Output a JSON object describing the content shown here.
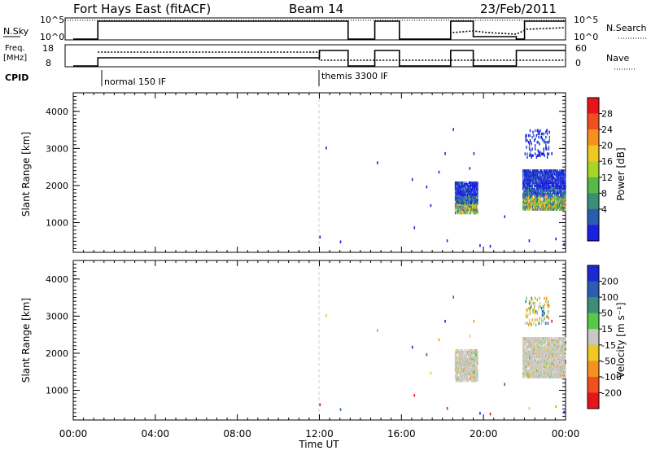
{
  "header": {
    "title": "Fort Hays East (fitACF)",
    "beam": "Beam 14",
    "date": "23/Feb/2011"
  },
  "strips": {
    "nsky_label": "N.Sky",
    "nsky_ticks": [
      "10^5",
      "10^0"
    ],
    "nsearch_label": "N.Search",
    "nsearch_ticks": [
      "10^5",
      "10^0"
    ],
    "freq_label_1": "Freq.",
    "freq_label_2": "[MHz]",
    "freq_ticks": [
      "18",
      "8"
    ],
    "nave_label": "Nave",
    "nave_ticks": [
      "60",
      "0"
    ],
    "cpid_label": "CPID",
    "cpid_segments": [
      {
        "start_hour": 1.2,
        "label": "normal 150 IF"
      },
      {
        "start_hour": 12.0,
        "label": "themis 3300 IF"
      }
    ]
  },
  "chart_data": [
    {
      "type": "scatter",
      "name": "power",
      "ylabel": "Slant Range [km]",
      "xlabel": "Time UT",
      "xlim": [
        0,
        24
      ],
      "ylim": [
        200,
        4500
      ],
      "yticks": [
        "4000",
        "3000",
        "2000",
        "1000"
      ],
      "colorbar": {
        "label": "Power [dB]",
        "ticks": [
          "28",
          "24",
          "20",
          "16",
          "12",
          "8",
          "4"
        ],
        "colors": [
          "#e8141c",
          "#f0501e",
          "#f5921e",
          "#f0c823",
          "#a8d42a",
          "#58b848",
          "#3c8e78",
          "#2a5cb0",
          "#1a20e0"
        ]
      },
      "clusters": [
        {
          "t_start": 18.6,
          "t_end": 19.7,
          "r_min": 1300,
          "r_max": 2150,
          "palette": "power"
        },
        {
          "t_start": 21.9,
          "t_end": 24.0,
          "r_min": 1400,
          "r_max": 2450,
          "palette": "power"
        },
        {
          "t_start": 22.0,
          "t_end": 23.2,
          "r_min": 2800,
          "r_max": 3550,
          "palette": "power_sparse"
        }
      ],
      "scatter_points": [
        [
          12.0,
          650
        ],
        [
          13.0,
          520
        ],
        [
          12.3,
          3050
        ],
        [
          14.8,
          2650
        ],
        [
          16.5,
          2200
        ],
        [
          16.6,
          900
        ],
        [
          17.2,
          2000
        ],
        [
          17.4,
          1500
        ],
        [
          17.8,
          2400
        ],
        [
          18.1,
          2900
        ],
        [
          18.2,
          550
        ],
        [
          18.5,
          3550
        ],
        [
          19.3,
          2500
        ],
        [
          19.5,
          2900
        ],
        [
          19.8,
          420
        ],
        [
          20.3,
          400
        ],
        [
          21.0,
          1200
        ],
        [
          22.2,
          550
        ],
        [
          23.5,
          600
        ],
        [
          23.9,
          450
        ],
        [
          23.3,
          2900
        ]
      ]
    },
    {
      "type": "scatter",
      "name": "velocity",
      "ylabel": "Slant Range [km]",
      "xlabel": "Time UT",
      "xlim": [
        0,
        24
      ],
      "ylim": [
        200,
        4500
      ],
      "yticks": [
        "4000",
        "3000",
        "2000",
        "1000"
      ],
      "xticks": [
        "00:00",
        "04:00",
        "08:00",
        "12:00",
        "16:00",
        "20:00",
        "00:00"
      ],
      "colorbar": {
        "label": "Velocity [m s^-1]",
        "ticks": [
          "200",
          "100",
          "50",
          "15",
          "-15",
          "-50",
          "-100",
          "-200"
        ],
        "colors": [
          "#1a2ad0",
          "#2a5cb0",
          "#3c8e78",
          "#58c848",
          "#c8c8c0",
          "#f0c823",
          "#f5921e",
          "#f0501e",
          "#e8141c"
        ]
      },
      "clusters": [
        {
          "t_start": 18.6,
          "t_end": 19.7,
          "r_min": 1300,
          "r_max": 2150,
          "palette": "velocity"
        },
        {
          "t_start": 21.9,
          "t_end": 24.0,
          "r_min": 1400,
          "r_max": 2450,
          "palette": "velocity"
        },
        {
          "t_start": 22.0,
          "t_end": 23.2,
          "r_min": 2800,
          "r_max": 3550,
          "palette": "velocity_sparse"
        }
      ],
      "scatter_points": [
        [
          12.0,
          650
        ],
        [
          13.0,
          520
        ],
        [
          12.3,
          3050
        ],
        [
          14.8,
          2650
        ],
        [
          16.5,
          2200
        ],
        [
          16.6,
          900
        ],
        [
          17.2,
          2000
        ],
        [
          17.4,
          1500
        ],
        [
          17.8,
          2400
        ],
        [
          18.1,
          2900
        ],
        [
          18.2,
          550
        ],
        [
          18.5,
          3550
        ],
        [
          19.3,
          2500
        ],
        [
          19.5,
          2900
        ],
        [
          19.8,
          420
        ],
        [
          20.3,
          400
        ],
        [
          21.0,
          1200
        ],
        [
          22.2,
          550
        ],
        [
          23.5,
          600
        ],
        [
          23.9,
          450
        ],
        [
          23.3,
          2900
        ]
      ]
    }
  ]
}
